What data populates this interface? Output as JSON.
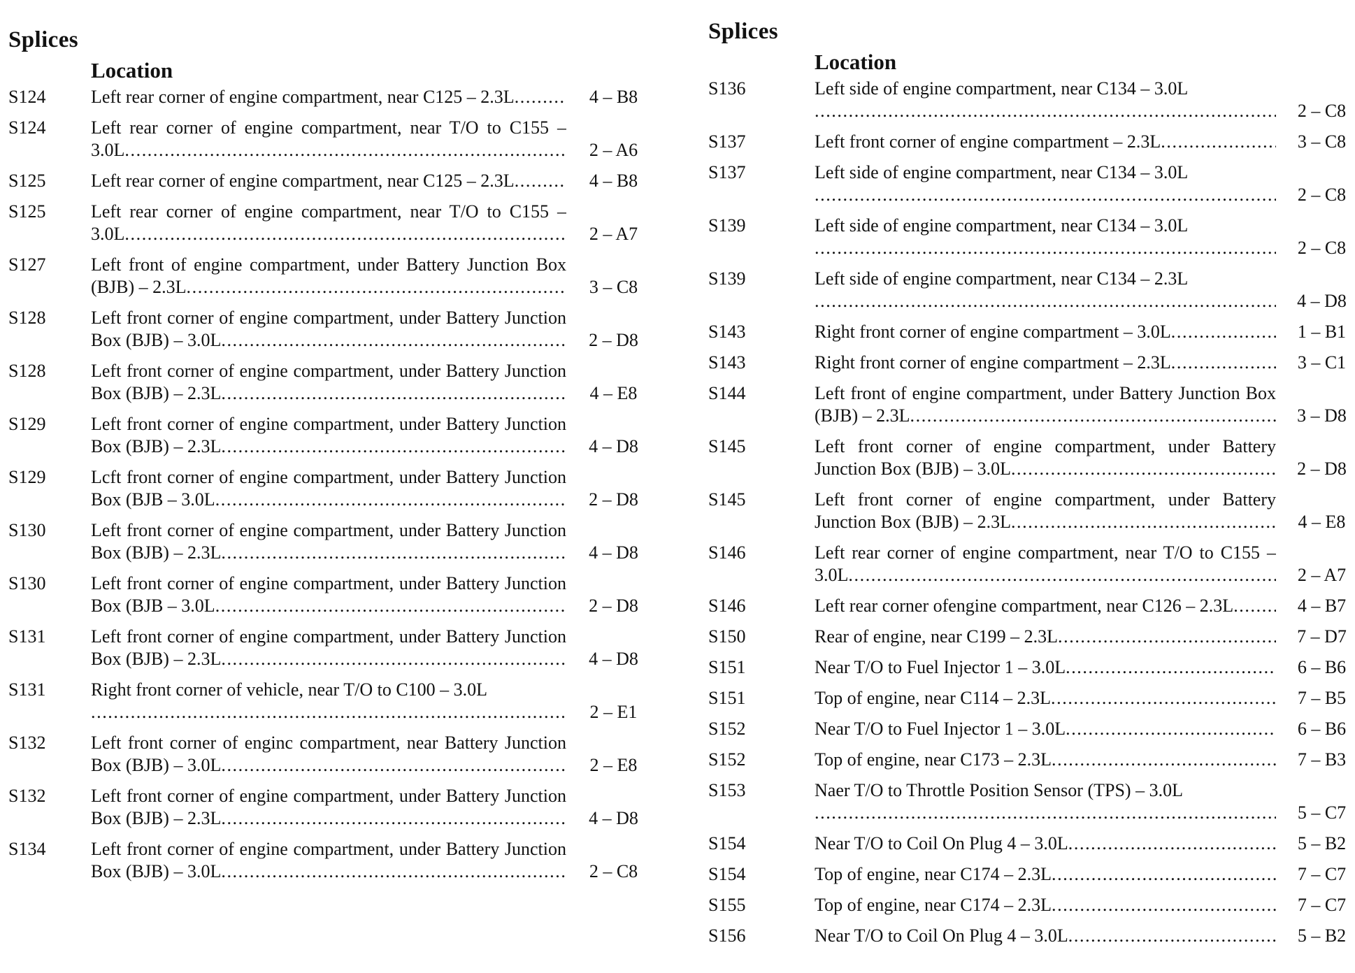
{
  "colors": {
    "background": "#ffffff",
    "text": "#121212"
  },
  "columns": [
    {
      "header": "Splices",
      "location_label": "Location",
      "entries": [
        {
          "id": "S124",
          "location": "Left rear corner of engine compartment, near C125 – 2.3L",
          "ref": "4 – B8"
        },
        {
          "id": "S124",
          "location": "Left rear corner of engine compartment, near T/O to C155 – 3.0L",
          "ref": "2 – A6"
        },
        {
          "id": "S125",
          "location": "Left rear corner of engine compartment, near C125 – 2.3L",
          "ref": "4 – B8"
        },
        {
          "id": "S125",
          "location": "Left rear corner of engine compartment, near T/O to C155 – 3.0L",
          "ref": "2 – A7"
        },
        {
          "id": "S127",
          "location": "Left front of engine compartment, under Battery Junction Box (BJB) – 2.3L",
          "ref": "3 – C8"
        },
        {
          "id": "S128",
          "location": "Left front corner of engine compartment, under Battery Junction Box (BJB) – 3.0L",
          "ref": "2 – D8"
        },
        {
          "id": "S128",
          "location": "Left front corner of engine compartment, under Battery Junction Box (BJB) – 2.3L",
          "ref": "4 – E8"
        },
        {
          "id": "S129",
          "location": "Left front corner of engine compartment, under Battery Junction Box (BJB) – 2.3L",
          "ref": "4 – D8"
        },
        {
          "id": "S129",
          "location": "Lcft front corner of engine compartment, under Battery Junction Box (BJB – 3.0L",
          "ref": "2 – D8"
        },
        {
          "id": "S130",
          "location": "Left front corner of engine compartment, under Battery Junction Box (BJB) – 2.3L",
          "ref": "4 – D8"
        },
        {
          "id": "S130",
          "location": "Left front corner of engine compartment, under Battery Junction Box (BJB – 3.0L",
          "ref": "2 – D8"
        },
        {
          "id": "S131",
          "location": "Left front corner of engine compartment, under Battery Junction Box (BJB) – 2.3L",
          "ref": "4 – D8"
        },
        {
          "id": "S131",
          "location": "Right front corner of vehicle, near T/O to C100 – 3.0L",
          "ref": "2 – E1",
          "dots_new_line": true
        },
        {
          "id": "S132",
          "location": "Left front corner of enginc compartment, near Battery Junction Box (BJB) – 3.0L",
          "ref": "2 – E8"
        },
        {
          "id": "S132",
          "location": "Left front corner of engine compartment, under Battery Junction Box (BJB) – 2.3L",
          "ref": "4 – D8"
        },
        {
          "id": "S134",
          "location": "Left front corner of engine compartment, under Battery Junction Box (BJB) – 3.0L",
          "ref": "2 – C8"
        }
      ]
    },
    {
      "header": "Splices",
      "location_label": "Location",
      "entries": [
        {
          "id": "S136",
          "location": "Left side of engine compartment, near C134 – 3.0L",
          "ref": "2 – C8",
          "dots_new_line": true
        },
        {
          "id": "S137",
          "location": "Left front corner of engine compartment – 2.3L",
          "ref": "3 – C8"
        },
        {
          "id": "S137",
          "location": "Left side of engine compartment, near C134 – 3.0L",
          "ref": "2 – C8",
          "dots_new_line": true
        },
        {
          "id": "S139",
          "location": "Left side of engine compartment, near C134 – 3.0L",
          "ref": "2 – C8",
          "dots_new_line": true
        },
        {
          "id": "S139",
          "location": "Left side of engine compartment, near C134 – 2.3L",
          "ref": "4 – D8",
          "dots_new_line": true
        },
        {
          "id": "S143",
          "location": "Right front corner of engine compartment – 3.0L",
          "ref": "1 – B1"
        },
        {
          "id": "S143",
          "location": "Right front corner of engine compartment – 2.3L",
          "ref": "3 – C1"
        },
        {
          "id": "S144",
          "location": "Left front of engine compartment, under Battery Junction Box (BJB) – 2.3L",
          "ref": "3 – D8"
        },
        {
          "id": "S145",
          "location": "Left front corner of engine compartment, under Battery Junction Box (BJB) – 3.0L",
          "ref": "2 – D8"
        },
        {
          "id": "S145",
          "location": "Left front corner of engine compartment, under Battery Junction Box (BJB) – 2.3L",
          "ref": "4 – E8"
        },
        {
          "id": "S146",
          "location": "Left rear corner of engine compartment, near T/O to C155 – 3.0L",
          "ref": "2 – A7"
        },
        {
          "id": "S146",
          "location": "Left rear corner ofengine compartment, near C126 – 2.3L",
          "ref": "4 – B7"
        },
        {
          "id": "S150",
          "location": "Rear of engine, near C199 – 2.3L",
          "ref": "7 – D7"
        },
        {
          "id": "S151",
          "location": "Near T/O to Fuel Injector 1 – 3.0L",
          "ref": "6 – B6"
        },
        {
          "id": "S151",
          "location": "Top of engine, near C114 – 2.3L",
          "ref": "7 – B5"
        },
        {
          "id": "S152",
          "location": "Near T/O to Fuel Injector 1 – 3.0L",
          "ref": "6 – B6"
        },
        {
          "id": "S152",
          "location": "Top of engine, near C173 – 2.3L",
          "ref": "7 – B3"
        },
        {
          "id": "S153",
          "location": "Naer T/O to Throttle Position Sensor (TPS) – 3.0L",
          "ref": "5 – C7",
          "dots_new_line": true
        },
        {
          "id": "S154",
          "location": "Near T/O to Coil On Plug 4 – 3.0L",
          "ref": "5 – B2"
        },
        {
          "id": "S154",
          "location": "Top of engine, near C174 – 2.3L",
          "ref": "7 – C7"
        },
        {
          "id": "S155",
          "location": "Top of engine, near C174 – 2.3L",
          "ref": "7 – C7"
        },
        {
          "id": "S156",
          "location": "Near T/O to Coil On Plug 4 – 3.0L",
          "ref": "5 – B2"
        }
      ]
    }
  ]
}
